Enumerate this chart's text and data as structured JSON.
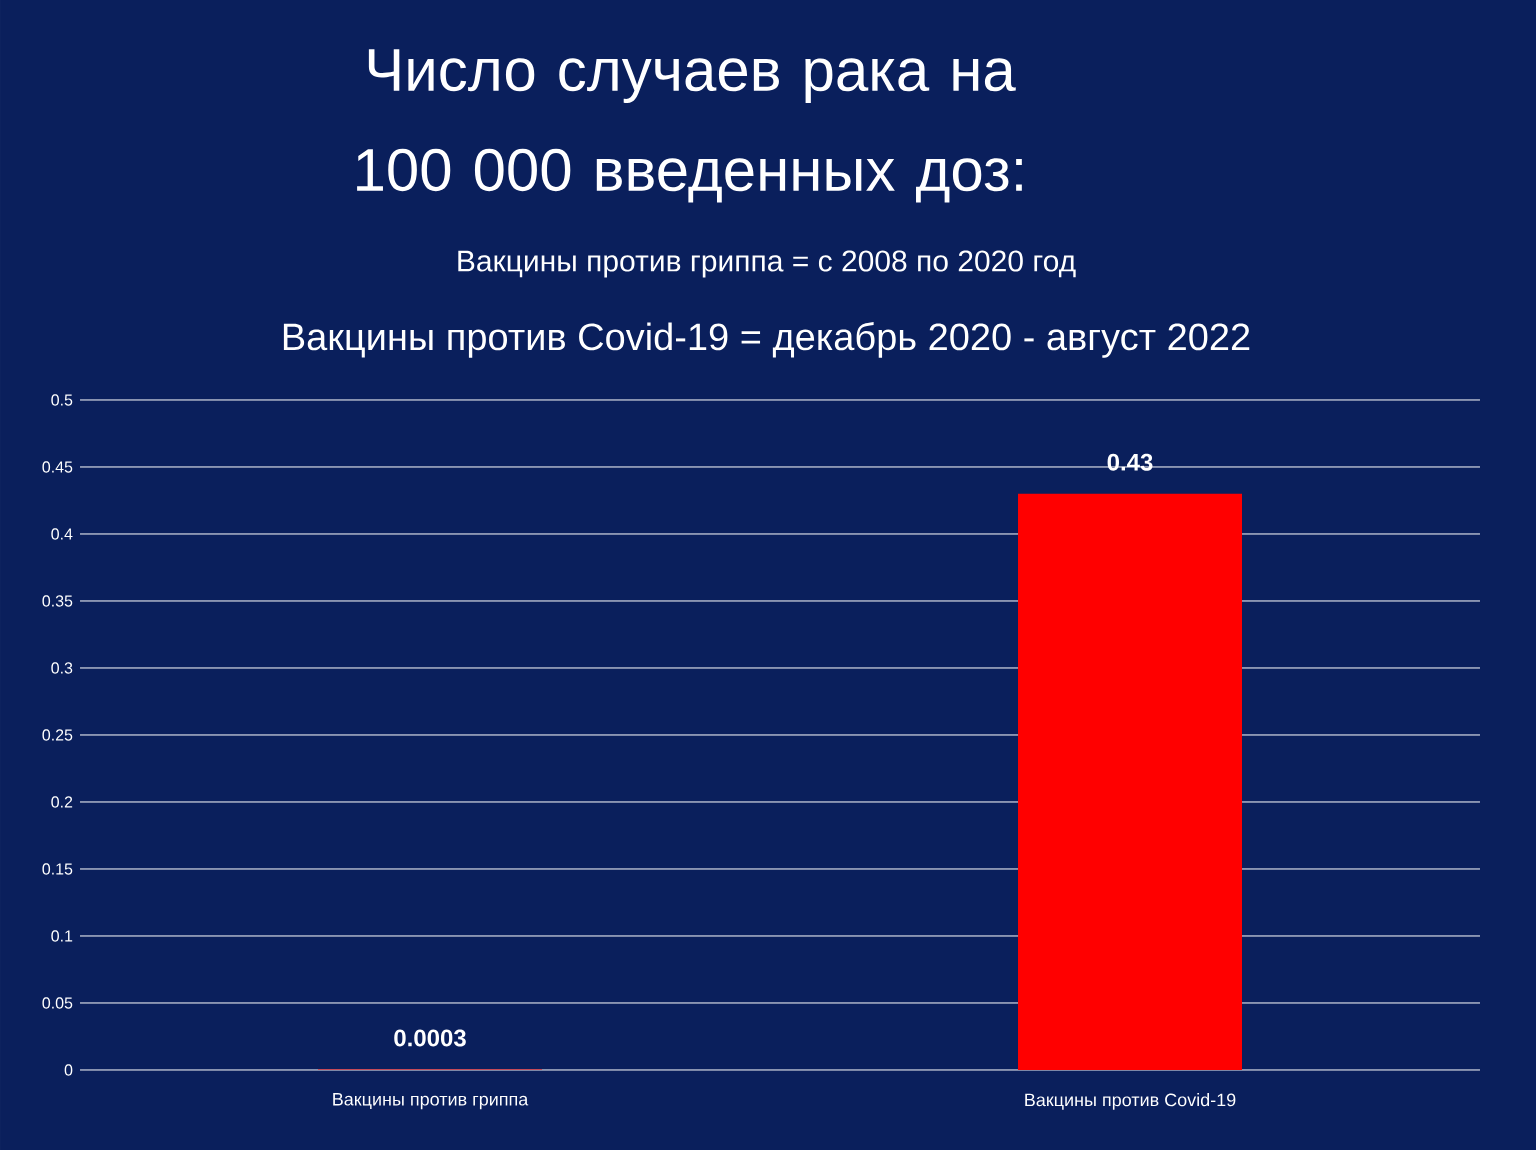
{
  "chart_data": {
    "type": "bar",
    "title": "Число случаев рака на 100 000 введенных доз:",
    "subtitle": "Вакцины против гриппа = с 2008 по 2020 год",
    "annotations": [
      "Вакцины против Covid-19 = декабрь 2020 - август 2022"
    ],
    "categories": [
      "Вакцины против гриппа",
      "Вакцины против Covid-19"
    ],
    "values": [
      0.0003,
      0.43
    ],
    "colors": [
      "#ff0000",
      "#ff0000"
    ],
    "ylim": [
      0,
      0.5
    ],
    "yticks": [
      0,
      0.05,
      0.1,
      0.15,
      0.2,
      0.25,
      0.3,
      0.35,
      0.4,
      0.45,
      0.5
    ],
    "grid": "y",
    "data_labels": true
  }
}
